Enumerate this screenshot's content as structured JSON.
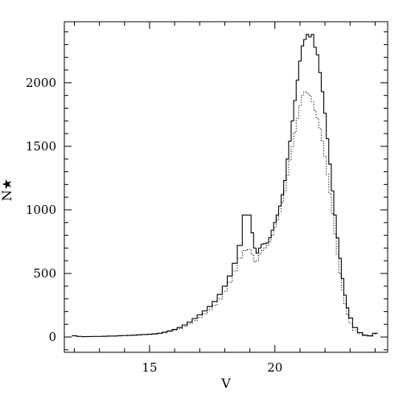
{
  "chart_data": {
    "type": "line",
    "title": "",
    "xlabel": "V",
    "ylabel": "N★",
    "xlim": [
      11.6,
      24.5
    ],
    "ylim": [
      -120,
      2480
    ],
    "x_ticks": [
      15,
      20
    ],
    "y_ticks": [
      0,
      500,
      1000,
      1500,
      2000
    ],
    "x_tick_labels": [
      "15",
      "20"
    ],
    "y_tick_labels": [
      "0",
      "500",
      "1000",
      "1500",
      "2000"
    ],
    "grid": false,
    "legend": "none",
    "series": [
      {
        "style": "solid",
        "x": [
          12.0,
          12.2,
          12.4,
          12.6,
          12.8,
          13.0,
          13.2,
          13.4,
          13.6,
          13.8,
          14.0,
          14.2,
          14.4,
          14.6,
          14.8,
          15.0,
          15.2,
          15.4,
          15.6,
          15.8,
          16.0,
          16.2,
          16.4,
          16.6,
          16.8,
          17.0,
          17.2,
          17.4,
          17.6,
          17.8,
          18.0,
          18.2,
          18.4,
          18.6,
          18.8,
          19.0,
          19.1,
          19.2,
          19.3,
          19.4,
          19.5,
          19.6,
          19.7,
          19.8,
          19.9,
          20.0,
          20.1,
          20.2,
          20.3,
          20.4,
          20.5,
          20.6,
          20.7,
          20.8,
          20.9,
          21.0,
          21.1,
          21.2,
          21.3,
          21.4,
          21.5,
          21.6,
          21.7,
          21.8,
          21.9,
          22.0,
          22.1,
          22.2,
          22.3,
          22.4,
          22.5,
          22.6,
          22.7,
          22.8,
          22.9,
          23.0,
          23.2,
          23.4,
          23.6,
          23.8,
          24.0
        ],
        "y": [
          10,
          5,
          3,
          4,
          5,
          5,
          6,
          8,
          8,
          10,
          12,
          13,
          15,
          18,
          20,
          22,
          25,
          30,
          38,
          48,
          60,
          75,
          95,
          118,
          145,
          175,
          205,
          240,
          280,
          335,
          400,
          480,
          580,
          720,
          960,
          960,
          820,
          700,
          660,
          700,
          730,
          735,
          740,
          780,
          840,
          900,
          960,
          1030,
          1120,
          1230,
          1400,
          1540,
          1700,
          1860,
          2020,
          2170,
          2290,
          2340,
          2380,
          2360,
          2380,
          2280,
          2220,
          2080,
          1930,
          1760,
          1560,
          1360,
          1150,
          960,
          780,
          620,
          460,
          330,
          230,
          150,
          75,
          35,
          15,
          10,
          30
        ]
      },
      {
        "style": "dotted",
        "x": [
          12.0,
          12.2,
          12.4,
          12.6,
          12.8,
          13.0,
          13.2,
          13.4,
          13.6,
          13.8,
          14.0,
          14.2,
          14.4,
          14.6,
          14.8,
          15.0,
          15.2,
          15.4,
          15.6,
          15.8,
          16.0,
          16.2,
          16.4,
          16.6,
          16.8,
          17.0,
          17.2,
          17.4,
          17.6,
          17.8,
          18.0,
          18.2,
          18.4,
          18.6,
          18.8,
          19.0,
          19.1,
          19.2,
          19.3,
          19.4,
          19.5,
          19.6,
          19.7,
          19.8,
          19.9,
          20.0,
          20.1,
          20.2,
          20.3,
          20.4,
          20.5,
          20.6,
          20.7,
          20.8,
          20.9,
          21.0,
          21.1,
          21.2,
          21.3,
          21.4,
          21.5,
          21.6,
          21.7,
          21.8,
          21.9,
          22.0,
          22.1,
          22.2,
          22.3,
          22.4,
          22.5,
          22.6,
          22.7,
          22.8,
          22.9,
          23.0,
          23.2,
          23.4,
          23.6,
          23.8,
          24.0
        ],
        "y": [
          8,
          4,
          3,
          3,
          4,
          4,
          5,
          6,
          7,
          8,
          10,
          11,
          13,
          15,
          18,
          20,
          22,
          27,
          33,
          42,
          52,
          66,
          84,
          105,
          128,
          155,
          182,
          215,
          250,
          300,
          360,
          430,
          520,
          620,
          680,
          690,
          650,
          590,
          600,
          650,
          680,
          700,
          720,
          750,
          800,
          860,
          920,
          990,
          1060,
          1150,
          1270,
          1390,
          1500,
          1610,
          1720,
          1820,
          1900,
          1930,
          1920,
          1900,
          1850,
          1780,
          1720,
          1640,
          1540,
          1420,
          1280,
          1130,
          970,
          810,
          650,
          500,
          370,
          260,
          175,
          110,
          55,
          25,
          10,
          6,
          25
        ]
      }
    ]
  }
}
